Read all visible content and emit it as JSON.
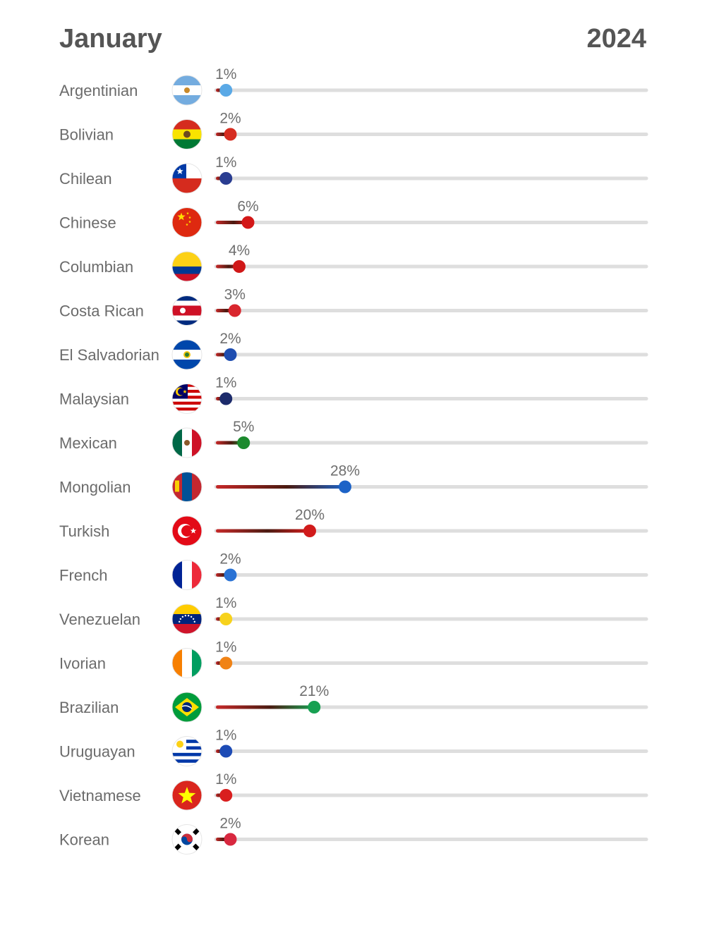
{
  "header": {
    "month": "January",
    "year": "2024"
  },
  "chart_data": {
    "type": "bar",
    "xlim": [
      0,
      100
    ],
    "legend": "none",
    "grid": false,
    "series": [
      {
        "name": "Argentinian",
        "value": 1,
        "color": "#5aa9e6",
        "flag": "argentina-flag"
      },
      {
        "name": "Bolivian",
        "value": 2,
        "color": "#d62c20",
        "flag": "bolivia-flag"
      },
      {
        "name": "Chilean",
        "value": 1,
        "color": "#2a3d91",
        "flag": "chile-flag"
      },
      {
        "name": "Chinese",
        "value": 6,
        "color": "#d31717",
        "flag": "china-flag"
      },
      {
        "name": "Columbian",
        "value": 4,
        "color": "#d01818",
        "flag": "colombia-flag"
      },
      {
        "name": "Costa Rican",
        "value": 3,
        "color": "#d9262e",
        "flag": "costa-rica-flag"
      },
      {
        "name": "El Salvadorian",
        "value": 2,
        "color": "#1e4db0",
        "flag": "el-salvador-flag"
      },
      {
        "name": "Malaysian",
        "value": 1,
        "color": "#1c2b6b",
        "flag": "malaysia-flag"
      },
      {
        "name": "Mexican",
        "value": 5,
        "color": "#1c8a2e",
        "flag": "mexico-flag"
      },
      {
        "name": "Mongolian",
        "value": 28,
        "color": "#1d63c7",
        "flag": "mongolia-flag"
      },
      {
        "name": "Turkish",
        "value": 20,
        "color": "#d11b1b",
        "flag": "turkey-flag"
      },
      {
        "name": "French",
        "value": 2,
        "color": "#2a72d4",
        "flag": "france-flag"
      },
      {
        "name": "Venezuelan",
        "value": 1,
        "color": "#f7d21c",
        "flag": "venezuela-flag"
      },
      {
        "name": "Ivorian",
        "value": 1,
        "color": "#f08316",
        "flag": "ivory-coast-flag"
      },
      {
        "name": "Brazilian",
        "value": 21,
        "color": "#17a052",
        "flag": "brazil-flag"
      },
      {
        "name": "Uruguayan",
        "value": 1,
        "color": "#1d4bb5",
        "flag": "uruguay-flag"
      },
      {
        "name": "Vietnamese",
        "value": 1,
        "color": "#d91e1e",
        "flag": "vietnam-flag"
      },
      {
        "name": "Korean",
        "value": 2,
        "color": "#d8283f",
        "flag": "korea-flag"
      }
    ]
  }
}
